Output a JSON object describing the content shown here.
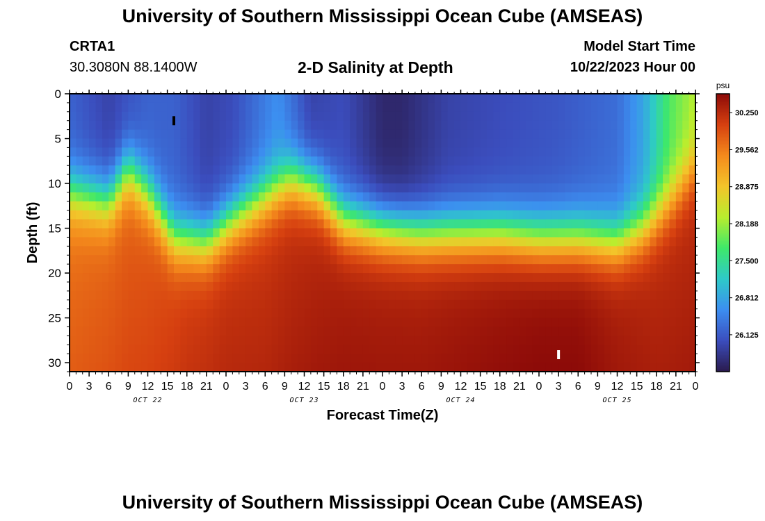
{
  "header": {
    "title": "University of Southern Mississippi Ocean Cube (AMSEAS)",
    "station": "CRTA1",
    "coords": "30.3080N  88.1400W",
    "subtitle": "2-D Salinity at Depth",
    "model_start_label": "Model Start Time",
    "model_start_value": "10/22/2023 Hour 00"
  },
  "footer": {
    "title": "University of Southern Mississippi Ocean Cube (AMSEAS)"
  },
  "colors": {
    "colormap": [
      "#2a1a4e",
      "#3b4dbd",
      "#3c8ef0",
      "#2ec9c9",
      "#3ee86a",
      "#b8ee2e",
      "#f3c42a",
      "#f48a1c",
      "#d64010",
      "#8c0a08"
    ]
  },
  "chart_data": {
    "type": "heatmap",
    "xlabel": "Forecast Time(Z)",
    "ylabel": "Depth (ft)",
    "x_ticks": [
      "0",
      "3",
      "6",
      "9",
      "12",
      "15",
      "18",
      "21",
      "0",
      "3",
      "6",
      "9",
      "12",
      "15",
      "18",
      "21",
      "0",
      "3",
      "6",
      "9",
      "12",
      "15",
      "18",
      "21",
      "0",
      "3",
      "6",
      "9",
      "12",
      "15",
      "18",
      "21",
      "0"
    ],
    "x_dates": [
      "OCT 22",
      "OCT 23",
      "OCT 24",
      "OCT 25"
    ],
    "y_ticks": [
      0,
      5,
      10,
      15,
      20,
      25,
      30
    ],
    "xlim_hours": [
      0,
      96
    ],
    "ylim_ft": [
      0,
      31
    ],
    "colorbar": {
      "unit": "psu",
      "ticks": [
        "30.250",
        "29.562",
        "28.875",
        "28.188",
        "27.500",
        "26.812",
        "26.125"
      ],
      "range": [
        25.44,
        30.6
      ]
    },
    "surface_salinity_psu": [
      [
        0,
        26.2
      ],
      [
        6,
        25.9
      ],
      [
        12,
        26.2
      ],
      [
        16,
        26.2
      ],
      [
        21,
        25.9
      ],
      [
        25,
        26.0
      ],
      [
        32,
        26.6
      ],
      [
        37,
        25.9
      ],
      [
        42,
        26.0
      ],
      [
        48,
        25.6
      ],
      [
        51,
        25.6
      ],
      [
        58,
        25.9
      ],
      [
        66,
        26.0
      ],
      [
        75,
        26.1
      ],
      [
        84,
        26.3
      ],
      [
        88,
        26.8
      ],
      [
        92,
        27.8
      ],
      [
        96,
        28.3
      ]
    ],
    "halocline_depth_ft": [
      [
        0,
        11
      ],
      [
        6,
        12
      ],
      [
        9,
        8.5
      ],
      [
        12,
        11
      ],
      [
        16,
        16
      ],
      [
        21,
        16.5
      ],
      [
        25,
        14
      ],
      [
        30,
        11.5
      ],
      [
        34,
        9.5
      ],
      [
        38,
        10.5
      ],
      [
        42,
        14
      ],
      [
        48,
        15
      ],
      [
        54,
        15.5
      ],
      [
        62,
        15.5
      ],
      [
        66,
        15.5
      ],
      [
        72,
        16
      ],
      [
        78,
        16
      ],
      [
        84,
        16.5
      ],
      [
        88,
        15
      ],
      [
        92,
        12
      ],
      [
        96,
        8
      ]
    ],
    "bottom_salinity_psu": [
      [
        0,
        29.6
      ],
      [
        6,
        29.7
      ],
      [
        12,
        29.8
      ],
      [
        18,
        30.0
      ],
      [
        24,
        30.1
      ],
      [
        30,
        30.1
      ],
      [
        36,
        30.2
      ],
      [
        42,
        30.3
      ],
      [
        48,
        30.3
      ],
      [
        54,
        30.3
      ],
      [
        60,
        30.35
      ],
      [
        66,
        30.4
      ],
      [
        72,
        30.45
      ],
      [
        78,
        30.45
      ],
      [
        84,
        30.3
      ],
      [
        90,
        30.2
      ],
      [
        96,
        30.2
      ]
    ]
  }
}
